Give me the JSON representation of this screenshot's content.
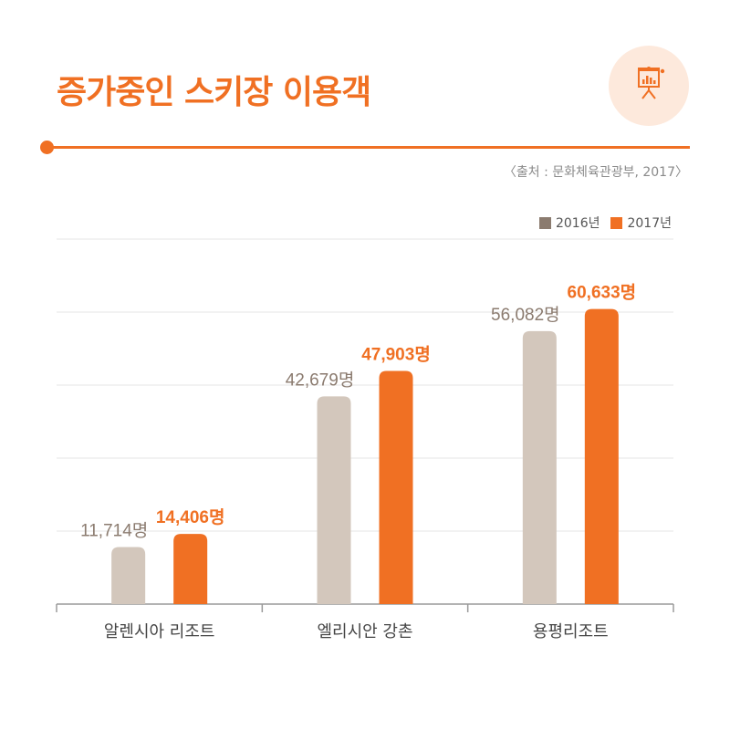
{
  "title": "증가중인 스키장 이용객",
  "source": "〈출처 : 문화체육관광부, 2017〉",
  "icon": "presentation-chart-icon",
  "colors": {
    "accent": "#f07023",
    "series_2016": "#d3c7bc",
    "series_2017": "#f07023",
    "label_2016": "#8b7b6f"
  },
  "chart_data": {
    "type": "bar",
    "categories": [
      "알렌시아 리조트",
      "엘리시안 강촌",
      "용평리조트"
    ],
    "series": [
      {
        "name": "2016년",
        "values": [
          11714,
          42679,
          56082
        ],
        "labels": [
          "11,714명",
          "42,679명",
          "56,082명"
        ]
      },
      {
        "name": "2017년",
        "values": [
          14406,
          47903,
          60633
        ],
        "labels": [
          "14,406명",
          "47,903명",
          "60,633명"
        ]
      }
    ],
    "ylim": [
      0,
      75000
    ],
    "grid": true,
    "legend": "top-right",
    "title": "",
    "xlabel": "",
    "ylabel": ""
  }
}
